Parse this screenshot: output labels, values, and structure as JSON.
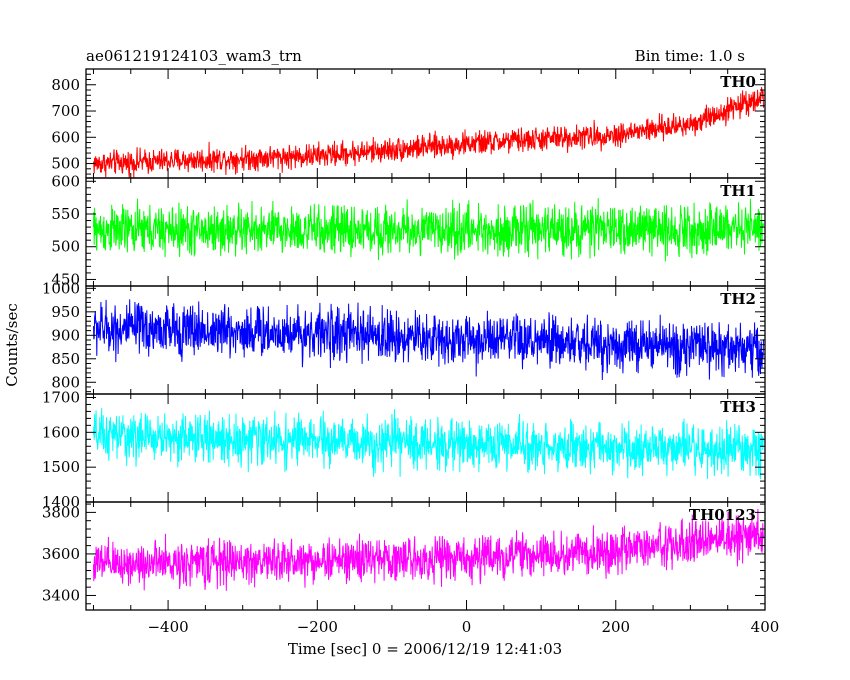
{
  "header": {
    "title": "ae061219124103_wam3_trn",
    "bin_time": "Bin time: 1.0 s"
  },
  "xlabel": "Time [sec] 0 = 2006/12/19 12:41:03",
  "ylabel": "Counts/sec",
  "chart_data": [
    {
      "type": "line",
      "name": "TH0",
      "color": "#ff0000",
      "x_range": [
        -510,
        400
      ],
      "ylim": [
        445,
        860
      ],
      "yticks": [
        500,
        600,
        700,
        800
      ],
      "trend": [
        [
          -500,
          500
        ],
        [
          -200,
          530
        ],
        [
          0,
          575
        ],
        [
          200,
          610
        ],
        [
          300,
          650
        ],
        [
          400,
          760
        ]
      ],
      "noise": 40
    },
    {
      "type": "line",
      "name": "TH1",
      "color": "#00ff00",
      "x_range": [
        -510,
        400
      ],
      "ylim": [
        440,
        605
      ],
      "yticks": [
        450,
        500,
        550,
        600
      ],
      "trend": [
        [
          -500,
          525
        ],
        [
          0,
          525
        ],
        [
          400,
          528
        ]
      ],
      "noise": 32
    },
    {
      "type": "line",
      "name": "TH2",
      "color": "#0000ff",
      "x_range": [
        -510,
        400
      ],
      "ylim": [
        775,
        1005
      ],
      "yticks": [
        800,
        850,
        900,
        950,
        1000
      ],
      "trend": [
        [
          -500,
          915
        ],
        [
          -200,
          905
        ],
        [
          0,
          890
        ],
        [
          400,
          870
        ]
      ],
      "noise": 48
    },
    {
      "type": "line",
      "name": "TH3",
      "color": "#00ffff",
      "x_range": [
        -510,
        400
      ],
      "ylim": [
        1400,
        1710
      ],
      "yticks": [
        1400,
        1500,
        1600,
        1700
      ],
      "trend": [
        [
          -500,
          1590
        ],
        [
          0,
          1565
        ],
        [
          400,
          1545
        ]
      ],
      "noise": 60
    },
    {
      "type": "line",
      "name": "TH0123",
      "color": "#ff00ff",
      "x_range": [
        -510,
        400
      ],
      "ylim": [
        3330,
        3850
      ],
      "yticks": [
        3400,
        3600,
        3800
      ],
      "xticks": [
        -400,
        -200,
        0,
        200,
        400
      ],
      "trend": [
        [
          -500,
          3550
        ],
        [
          0,
          3580
        ],
        [
          200,
          3610
        ],
        [
          400,
          3700
        ]
      ],
      "noise": 90
    }
  ]
}
